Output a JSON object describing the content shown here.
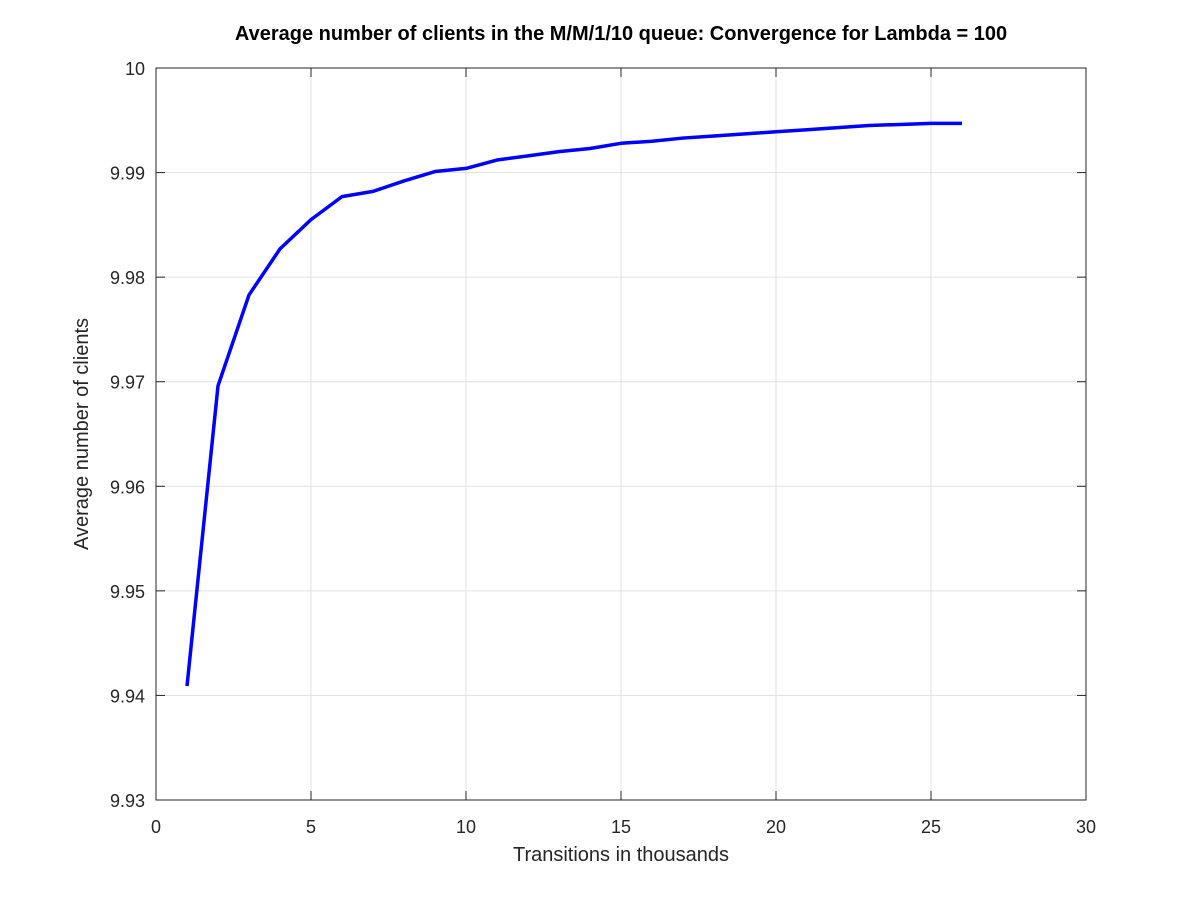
{
  "chart_data": {
    "type": "line",
    "title": "Average number of clients in the M/M/1/10 queue: Convergence for Lambda = 100",
    "xlabel": "Transitions in thousands",
    "ylabel": "Average number of clients",
    "xlim": [
      0,
      30
    ],
    "ylim": [
      9.93,
      10
    ],
    "xticks": [
      0,
      5,
      10,
      15,
      20,
      25,
      30
    ],
    "xtick_labels": [
      "0",
      "5",
      "10",
      "15",
      "20",
      "25",
      "30"
    ],
    "yticks": [
      9.93,
      9.94,
      9.95,
      9.96,
      9.97,
      9.98,
      9.99,
      10
    ],
    "ytick_labels": [
      "9.93",
      "9.94",
      "9.95",
      "9.96",
      "9.97",
      "9.98",
      "9.99",
      "10"
    ],
    "grid": true,
    "series": [
      {
        "color": "#0000ff",
        "x": [
          1,
          2,
          3,
          4,
          5,
          6,
          7,
          8,
          9,
          10,
          11,
          12,
          13,
          14,
          15,
          16,
          17,
          18,
          19,
          20,
          21,
          22,
          23,
          24,
          25,
          26
        ],
        "values": [
          9.9409,
          9.9696,
          9.9783,
          9.9827,
          9.9855,
          9.9877,
          9.9882,
          9.9892,
          9.9901,
          9.9904,
          9.9912,
          9.9916,
          9.992,
          9.9923,
          9.9928,
          9.993,
          9.9933,
          9.9935,
          9.9937,
          9.9939,
          9.9941,
          9.9943,
          9.9945,
          9.9946,
          9.9947,
          9.9947
        ]
      }
    ]
  }
}
